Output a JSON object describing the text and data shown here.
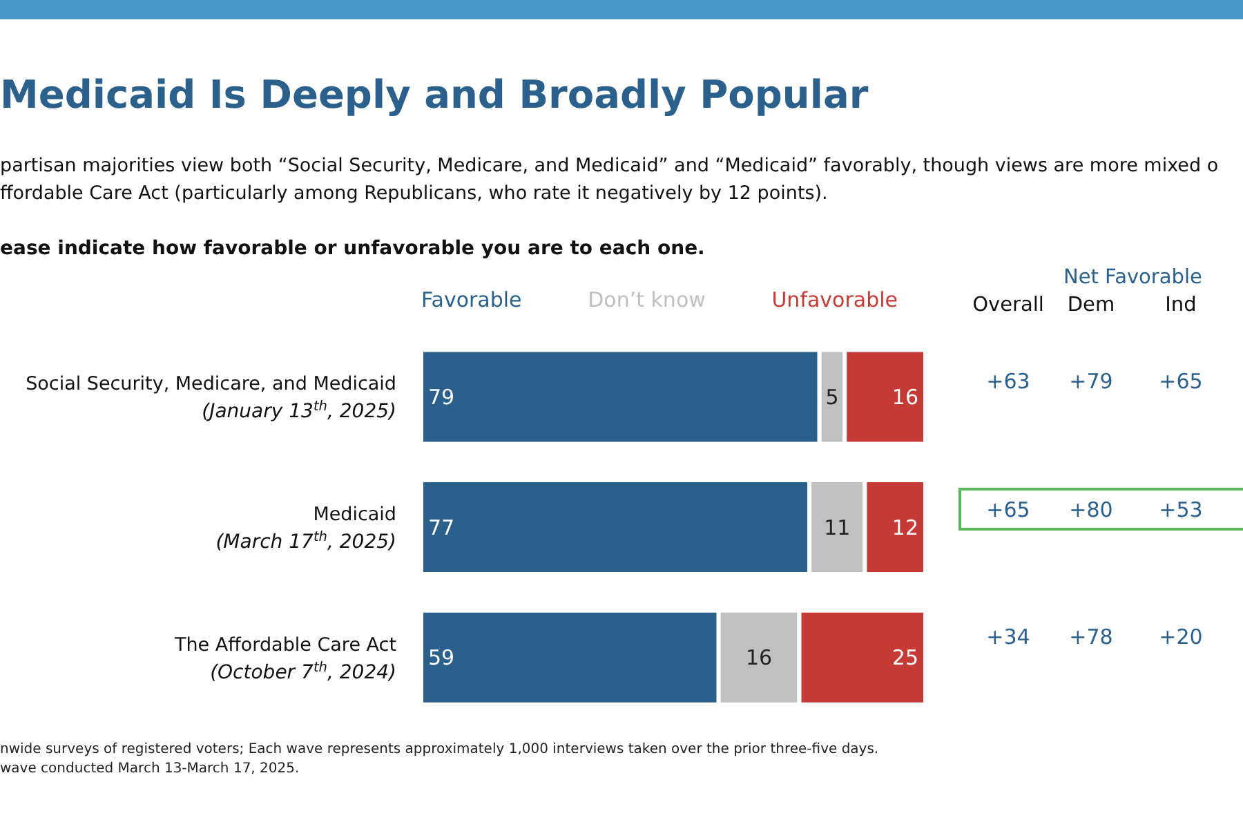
{
  "chart_data": {
    "type": "bar",
    "orientation": "horizontal",
    "stacked": true,
    "title": "Medicaid Is Deeply and Broadly Popular",
    "subtitle": "partisan majorities view both “Social Security, Medicare, and Medicaid” and “Medicaid” favorably, though views are more mixed o\nffordable Care Act (particularly among Republicans, who rate it negatively by 12 points).",
    "categories": [
      "Social Security, Medicare, and Medicaid\n(January 13$^{th}$, 2025)",
      "Medicaid\n(March 17$^{th}$, 2025)",
      "The Affordable Care Act\n(October 7$^{th}$, 2024)"
    ],
    "series": [
      {
        "name": "Favorable",
        "color": "#2b5f8c",
        "values": [
          79,
          77,
          59
        ]
      },
      {
        "name": "Don’t know",
        "color": "#c0c0c0",
        "values": [
          5,
          11,
          16
        ]
      },
      {
        "name": "Unfavorable",
        "color": "#c63a35",
        "values": [
          16,
          12,
          25
        ]
      }
    ],
    "data_labels": true,
    "legend": "top",
    "tick_labels": "y",
    "annotations": [
      "ease indicate how favorable or unfavorable you are to each one.",
      "nwide surveys of registered voters; Each wave represents approximately 1,000 interviews taken over the prior three-five days.",
      "wave conducted March 13-March 17, 2025.",
      "Net Favorable",
      "Overall",
      "Dem",
      "Ind",
      "+63",
      "+79",
      "+65",
      "+65",
      "+80",
      "+53",
      "+34",
      "+78",
      "+20"
    ]
  }
}
